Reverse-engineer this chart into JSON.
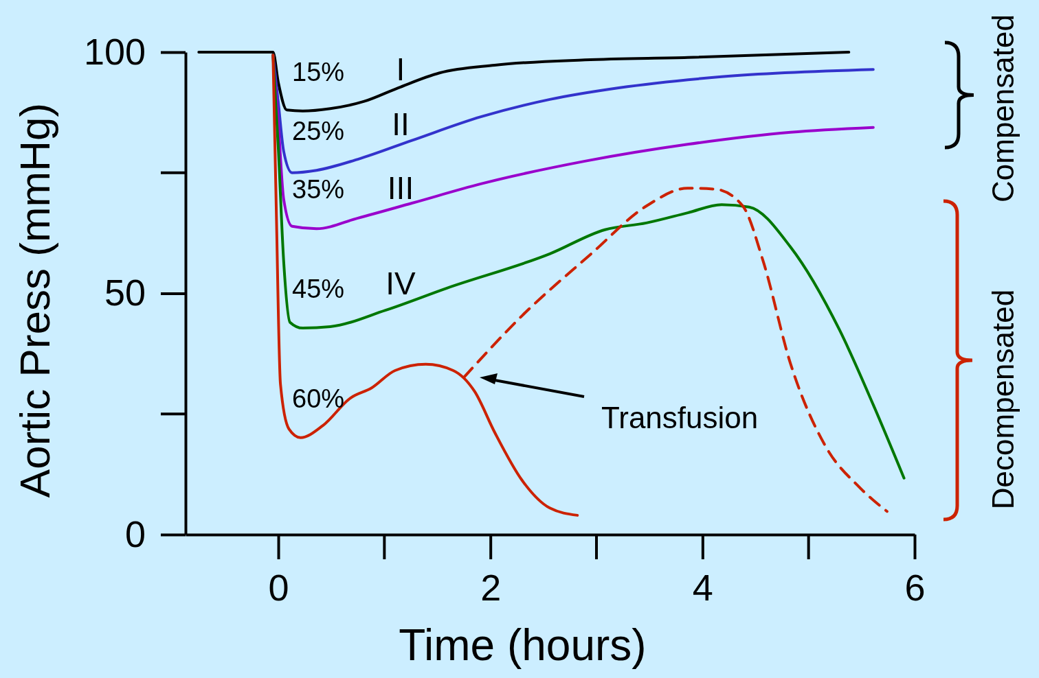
{
  "chart_data": {
    "type": "line",
    "xlabel": "Time (hours)",
    "ylabel": "Aortic Press (mmHg)",
    "xlim": [
      -0.875,
      6
    ],
    "ylim": [
      0,
      100
    ],
    "xticks": [
      0,
      2,
      4,
      6
    ],
    "yticks": [
      0,
      50,
      100
    ],
    "grid": false,
    "legend": false,
    "marker": "none",
    "series": [
      {
        "name": "15%",
        "color": "#000000",
        "x": [
          -0.75,
          -0.05,
          0,
          0.08,
          0.23,
          0.49,
          0.81,
          1.13,
          1.52,
          2.04,
          2.89,
          3.86,
          5.38
        ],
        "values": [
          100,
          100,
          93.7,
          88,
          87.8,
          88.3,
          89.8,
          92.6,
          95.7,
          97.3,
          98.4,
          98.9,
          100
        ]
      },
      {
        "name": "25%",
        "color": "#3333cc",
        "x": [
          -0.05,
          0,
          0.05,
          0.13,
          0.36,
          0.75,
          1.26,
          1.91,
          2.56,
          3.21,
          4.18,
          5.61
        ],
        "values": [
          99.4,
          89.5,
          79.5,
          75,
          75.5,
          77.8,
          81.7,
          86.6,
          90.2,
          92.6,
          94.9,
          96.4
        ]
      },
      {
        "name": "35%",
        "color": "#9900cc",
        "x": [
          -0.05,
          0,
          0.05,
          0.13,
          0.36,
          0.75,
          1.26,
          1.91,
          2.89,
          3.86,
          4.83,
          5.61
        ],
        "values": [
          99.4,
          85.2,
          69.6,
          63.9,
          63.4,
          65.6,
          68.7,
          72.7,
          77.4,
          80.9,
          83.4,
          84.4
        ]
      },
      {
        "name": "45%",
        "color": "#007700",
        "x": [
          -0.05,
          0,
          0.05,
          0.11,
          0.23,
          0.49,
          1.01,
          1.59,
          2.56,
          3.08,
          3.47,
          3.86,
          4.18,
          4.44,
          4.83,
          5.29,
          5.61,
          5.9
        ],
        "values": [
          99.4,
          80,
          56.8,
          44,
          42.8,
          43.1,
          46.5,
          51.1,
          58.2,
          63.2,
          64.6,
          66.7,
          68.4,
          67.9,
          59.6,
          42.5,
          26.9,
          11.7
        ]
      },
      {
        "name": "60%",
        "color": "#cc2200",
        "x": [
          -0.05,
          -0.02,
          0.02,
          0.1,
          0.21,
          0.42,
          0.68,
          0.88,
          1.1,
          1.39,
          1.65,
          1.85,
          2.04,
          2.3,
          2.56,
          2.82
        ],
        "values": [
          99.4,
          68.1,
          31.2,
          21.9,
          20.1,
          22.6,
          28.3,
          30.4,
          34,
          35.3,
          34,
          29.7,
          21.2,
          11.2,
          5.5,
          4
        ]
      },
      {
        "color": "#cc2200",
        "line_style": "dashed",
        "x": [
          1.75,
          2.3,
          2.95,
          3.47,
          3.86,
          4.12,
          4.38,
          4.57,
          4.83,
          5.16,
          5.48,
          5.74
        ],
        "values": [
          32.6,
          45.4,
          58.2,
          68.1,
          71.8,
          71.6,
          68.1,
          56.8,
          35.4,
          18.3,
          9.8,
          4.8
        ]
      }
    ],
    "annotations": [
      "I",
      "II",
      "III",
      "IV",
      "Transfusion",
      "Compensated",
      "Decompensated"
    ]
  }
}
